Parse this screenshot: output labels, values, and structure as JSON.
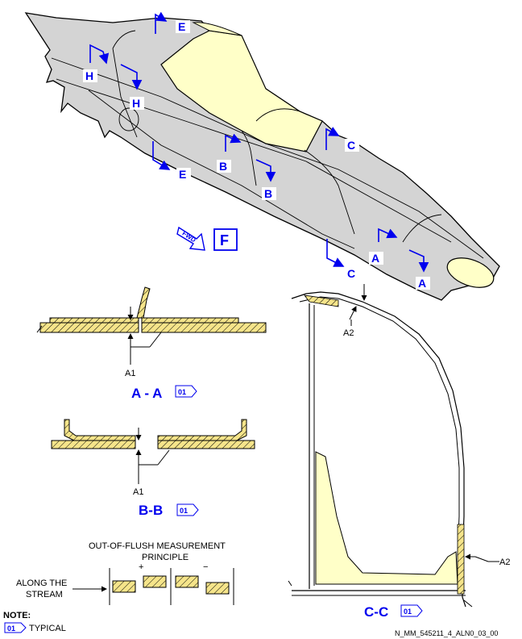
{
  "labels": {
    "cut_e_top": "E",
    "cut_e_bottom": "E",
    "cut_h_top": "H",
    "cut_h_bottom": "H",
    "cut_b_top": "B",
    "cut_b_bottom": "B",
    "cut_c_top": "C",
    "cut_c_bottom": "C",
    "cut_a_top": "A",
    "cut_a_bottom": "A",
    "fwd": "FWD",
    "view_f": "F"
  },
  "sections": {
    "aa_title": "A - A",
    "aa_ref": "01",
    "aa_dim": "A1",
    "bb_title": "B-B",
    "bb_ref": "01",
    "bb_dim": "A1",
    "cc_title": "C-C",
    "cc_ref": "01",
    "cc_dim_top": "A2",
    "cc_dim_side": "A2"
  },
  "principle": {
    "title_line1": "OUT-OF-FLUSH MEASUREMENT",
    "title_line2": "PRINCIPLE",
    "plus": "+",
    "minus": "−",
    "stream_line1": "ALONG THE",
    "stream_line2": "STREAM"
  },
  "note": {
    "heading": "NOTE:",
    "ref": "01",
    "text": "TYPICAL"
  },
  "figure_id": "N_MM_545211_4_ALN0_03_00",
  "colors": {
    "skin": "#d4d4d4",
    "canopy": "#ffffc8",
    "cut_lines": "#0000ee",
    "hatch": "#f5e48a"
  }
}
